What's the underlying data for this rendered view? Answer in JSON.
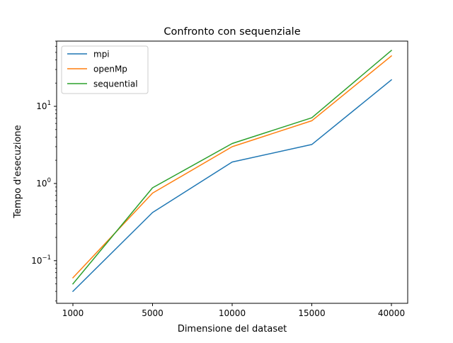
{
  "chart_data": {
    "type": "line",
    "title": "Confronto con sequenziale",
    "xlabel": "Dimensione del dataset",
    "ylabel": "Tempo d'esecuzione",
    "categories": [
      "1000",
      "5000",
      "10000",
      "15000",
      "40000"
    ],
    "y_scale": "log",
    "ylim": [
      0.028,
      70
    ],
    "y_ticks": [
      {
        "value": 0.1,
        "base": "10",
        "exp": "−1"
      },
      {
        "value": 1,
        "base": "10",
        "exp": "0"
      },
      {
        "value": 10,
        "base": "10",
        "exp": "1"
      }
    ],
    "grid": false,
    "legend_position": "upper-left",
    "series": [
      {
        "name": "mpi",
        "color": "#1f77b4",
        "values": [
          0.04,
          0.42,
          1.9,
          3.2,
          22
        ]
      },
      {
        "name": "openMp",
        "color": "#ff7f0e",
        "values": [
          0.06,
          0.75,
          3.0,
          6.5,
          45
        ]
      },
      {
        "name": "sequential",
        "color": "#2ca02c",
        "values": [
          0.05,
          0.88,
          3.3,
          7.1,
          53
        ]
      }
    ]
  }
}
